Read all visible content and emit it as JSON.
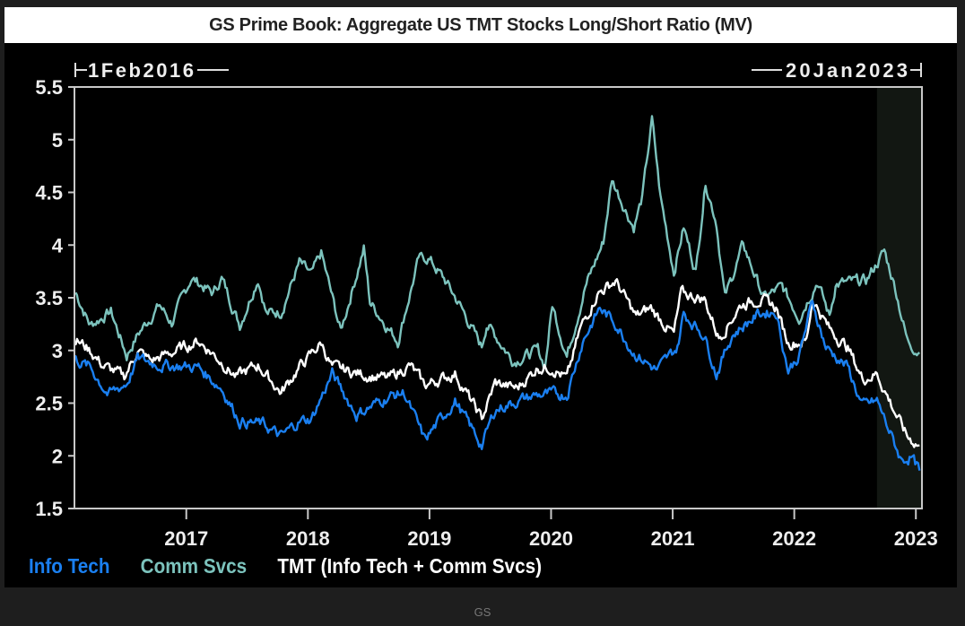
{
  "chart_data": {
    "type": "line",
    "title": "GS Prime Book: Aggregate US TMT Stocks Long/Short Ratio (MV)",
    "start_label": "1Feb2016",
    "end_label": "20Jan2023",
    "xlim": [
      2016.08,
      2023.05
    ],
    "ylim": [
      1.5,
      5.5
    ],
    "yticks": [
      "1.5",
      "2",
      "2.5",
      "3",
      "3.5",
      "4",
      "4.5",
      "5",
      "5.5"
    ],
    "xticks": [
      "2017",
      "2018",
      "2019",
      "2020",
      "2021",
      "2022",
      "2023"
    ],
    "highlight_range": [
      2022.68,
      2023.05
    ],
    "grid": false,
    "legend_position": "bottom-left",
    "source": "GS",
    "series": [
      {
        "name": "Comm Svcs",
        "color": "#7cc3bd",
        "points": [
          [
            2016.09,
            3.55
          ],
          [
            2016.21,
            3.24
          ],
          [
            2016.38,
            3.37
          ],
          [
            2016.51,
            2.95
          ],
          [
            2016.6,
            3.15
          ],
          [
            2016.78,
            3.43
          ],
          [
            2016.88,
            3.26
          ],
          [
            2017.04,
            3.69
          ],
          [
            2017.22,
            3.54
          ],
          [
            2017.29,
            3.69
          ],
          [
            2017.44,
            3.24
          ],
          [
            2017.59,
            3.69
          ],
          [
            2017.66,
            3.35
          ],
          [
            2017.78,
            3.37
          ],
          [
            2017.93,
            3.83
          ],
          [
            2018.03,
            3.71
          ],
          [
            2018.11,
            3.92
          ],
          [
            2018.27,
            3.18
          ],
          [
            2018.46,
            3.97
          ],
          [
            2018.51,
            3.46
          ],
          [
            2018.74,
            3.09
          ],
          [
            2018.91,
            3.86
          ],
          [
            2018.99,
            3.88
          ],
          [
            2019.13,
            3.66
          ],
          [
            2019.25,
            3.43
          ],
          [
            2019.43,
            3.03
          ],
          [
            2019.47,
            3.26
          ],
          [
            2019.69,
            2.9
          ],
          [
            2019.89,
            3.0
          ],
          [
            2019.95,
            2.85
          ],
          [
            2020.01,
            3.43
          ],
          [
            2020.13,
            2.95
          ],
          [
            2020.28,
            3.6
          ],
          [
            2020.43,
            4.03
          ],
          [
            2020.5,
            4.62
          ],
          [
            2020.68,
            4.17
          ],
          [
            2020.75,
            4.45
          ],
          [
            2020.83,
            5.19
          ],
          [
            2020.9,
            4.45
          ],
          [
            2021.01,
            3.75
          ],
          [
            2021.09,
            4.17
          ],
          [
            2021.19,
            3.75
          ],
          [
            2021.27,
            4.6
          ],
          [
            2021.36,
            4.22
          ],
          [
            2021.43,
            3.5
          ],
          [
            2021.58,
            4.0
          ],
          [
            2021.75,
            3.5
          ],
          [
            2021.9,
            3.6
          ],
          [
            2022.04,
            3.32
          ],
          [
            2022.19,
            3.66
          ],
          [
            2022.29,
            3.32
          ],
          [
            2022.34,
            3.63
          ],
          [
            2022.59,
            3.66
          ],
          [
            2022.74,
            3.94
          ],
          [
            2022.83,
            3.6
          ],
          [
            2022.93,
            3.09
          ],
          [
            2023.03,
            2.98
          ]
        ]
      },
      {
        "name": "TMT (Info Tech + Comm Svcs)",
        "color": "#ffffff",
        "points": [
          [
            2016.08,
            3.12
          ],
          [
            2016.21,
            3.0
          ],
          [
            2016.31,
            2.86
          ],
          [
            2016.49,
            2.75
          ],
          [
            2016.6,
            3.0
          ],
          [
            2016.71,
            2.9
          ],
          [
            2016.88,
            2.98
          ],
          [
            2017.1,
            3.09
          ],
          [
            2017.24,
            2.95
          ],
          [
            2017.41,
            2.75
          ],
          [
            2017.59,
            2.86
          ],
          [
            2017.78,
            2.6
          ],
          [
            2017.93,
            2.84
          ],
          [
            2018.11,
            3.07
          ],
          [
            2018.2,
            2.84
          ],
          [
            2018.42,
            2.78
          ],
          [
            2018.66,
            2.73
          ],
          [
            2018.84,
            2.86
          ],
          [
            2018.96,
            2.67
          ],
          [
            2019.21,
            2.78
          ],
          [
            2019.43,
            2.35
          ],
          [
            2019.54,
            2.69
          ],
          [
            2019.72,
            2.64
          ],
          [
            2019.89,
            2.84
          ],
          [
            2020.01,
            2.84
          ],
          [
            2020.13,
            2.73
          ],
          [
            2020.24,
            3.2
          ],
          [
            2020.38,
            3.54
          ],
          [
            2020.53,
            3.66
          ],
          [
            2020.7,
            3.32
          ],
          [
            2020.82,
            3.4
          ],
          [
            2021.01,
            3.15
          ],
          [
            2021.07,
            3.54
          ],
          [
            2021.26,
            3.49
          ],
          [
            2021.38,
            3.12
          ],
          [
            2021.56,
            3.43
          ],
          [
            2021.71,
            3.49
          ],
          [
            2021.85,
            3.41
          ],
          [
            2021.95,
            3.07
          ],
          [
            2022.1,
            3.09
          ],
          [
            2022.15,
            3.49
          ],
          [
            2022.29,
            3.2
          ],
          [
            2022.44,
            3.03
          ],
          [
            2022.56,
            2.73
          ],
          [
            2022.68,
            2.78
          ],
          [
            2022.83,
            2.41
          ],
          [
            2022.93,
            2.18
          ],
          [
            2023.03,
            2.1
          ]
        ]
      },
      {
        "name": "Info Tech",
        "color": "#1a7ff0",
        "points": [
          [
            2016.08,
            2.92
          ],
          [
            2016.21,
            2.84
          ],
          [
            2016.36,
            2.58
          ],
          [
            2016.51,
            2.69
          ],
          [
            2016.6,
            2.92
          ],
          [
            2016.8,
            2.86
          ],
          [
            2017.1,
            2.84
          ],
          [
            2017.29,
            2.64
          ],
          [
            2017.44,
            2.33
          ],
          [
            2017.63,
            2.3
          ],
          [
            2017.78,
            2.18
          ],
          [
            2017.93,
            2.33
          ],
          [
            2018.03,
            2.35
          ],
          [
            2018.2,
            2.78
          ],
          [
            2018.4,
            2.39
          ],
          [
            2018.66,
            2.56
          ],
          [
            2018.79,
            2.6
          ],
          [
            2018.96,
            2.15
          ],
          [
            2019.21,
            2.52
          ],
          [
            2019.43,
            2.1
          ],
          [
            2019.54,
            2.44
          ],
          [
            2019.72,
            2.52
          ],
          [
            2019.89,
            2.58
          ],
          [
            2020.13,
            2.58
          ],
          [
            2020.26,
            3.09
          ],
          [
            2020.4,
            3.4
          ],
          [
            2020.53,
            3.26
          ],
          [
            2020.68,
            2.98
          ],
          [
            2020.87,
            2.81
          ],
          [
            2021.04,
            3.03
          ],
          [
            2021.09,
            3.35
          ],
          [
            2021.26,
            3.15
          ],
          [
            2021.36,
            2.78
          ],
          [
            2021.49,
            3.15
          ],
          [
            2021.71,
            3.35
          ],
          [
            2021.85,
            3.37
          ],
          [
            2021.95,
            2.81
          ],
          [
            2022.04,
            2.95
          ],
          [
            2022.15,
            3.46
          ],
          [
            2022.26,
            3.03
          ],
          [
            2022.44,
            2.84
          ],
          [
            2022.56,
            2.47
          ],
          [
            2022.68,
            2.52
          ],
          [
            2022.88,
            1.96
          ],
          [
            2022.96,
            1.99
          ],
          [
            2023.03,
            1.86
          ]
        ]
      }
    ]
  }
}
